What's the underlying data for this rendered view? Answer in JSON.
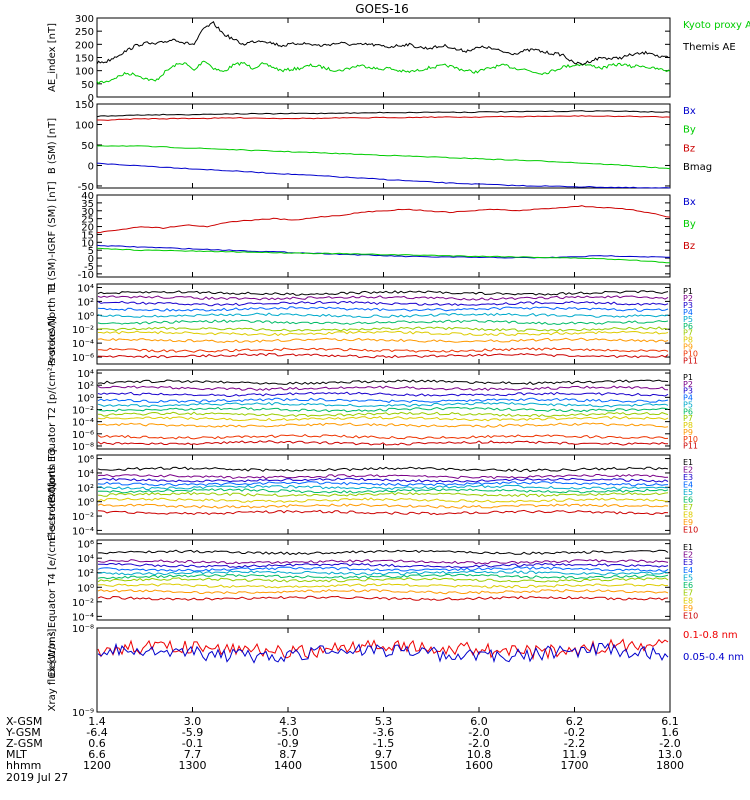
{
  "title": "GOES-16",
  "date_label": "2019 Jul 27",
  "x_range": [
    "12:00",
    "18:00"
  ],
  "chart_data": [
    {
      "type": "line",
      "ylabel": "AE_index [nT]",
      "yticks": [
        "300",
        "250",
        "200",
        "150",
        "100",
        "50",
        "0"
      ],
      "ylim": [
        0,
        300
      ],
      "series": [
        {
          "name": "Kyoto proxy AE",
          "color": "#00cc00",
          "values": [
            55,
            58,
            75,
            90,
            85,
            70,
            60,
            95,
            120,
            130,
            100,
            140,
            110,
            95,
            120,
            130,
            110,
            125,
            115,
            100,
            105,
            110,
            120,
            115,
            105,
            100,
            110,
            120,
            115,
            105,
            110,
            100,
            95,
            100,
            110,
            115,
            120,
            110,
            100,
            95,
            105,
            115,
            120,
            110,
            105,
            95,
            90,
            100,
            115,
            120,
            125,
            118,
            110,
            120,
            125,
            115,
            120,
            110,
            105,
            98
          ]
        },
        {
          "name": "Themis AE",
          "color": "#000000",
          "values": [
            130,
            135,
            155,
            175,
            195,
            205,
            200,
            210,
            220,
            205,
            200,
            260,
            280,
            240,
            220,
            200,
            210,
            215,
            205,
            195,
            200,
            205,
            200,
            195,
            200,
            205,
            200,
            198,
            200,
            195,
            190,
            195,
            200,
            190,
            185,
            190,
            195,
            180,
            175,
            185,
            190,
            180,
            170,
            165,
            175,
            180,
            170,
            165,
            160,
            130,
            125,
            140,
            150,
            145,
            150,
            160,
            165,
            170,
            150,
            150
          ]
        }
      ]
    },
    {
      "type": "line",
      "ylabel": "B (SM) [nT]",
      "yticks": [
        "150",
        "100",
        "50",
        "0",
        "-50"
      ],
      "ylim": [
        -55,
        150
      ],
      "series": [
        {
          "name": "Bx",
          "color": "#0000cc",
          "values": [
            5,
            2,
            -1,
            -4,
            -7,
            -10,
            -13,
            -16,
            -19,
            -22,
            -25,
            -28,
            -31,
            -34,
            -37,
            -40,
            -43,
            -45,
            -47,
            -49,
            -50,
            -51,
            -52,
            -53,
            -54,
            -55,
            -55
          ]
        },
        {
          "name": "By",
          "color": "#00cc00",
          "values": [
            48,
            48,
            47,
            45,
            43,
            41,
            39,
            37,
            35,
            33,
            31,
            29,
            27,
            25,
            23,
            21,
            19,
            17,
            15,
            13,
            11,
            9,
            6,
            3,
            0,
            -4,
            -8
          ]
        },
        {
          "name": "Bz",
          "color": "#cc0000",
          "values": [
            110,
            112,
            114,
            114,
            115,
            115,
            116,
            116,
            115,
            115,
            115,
            116,
            116,
            117,
            117,
            118,
            118,
            118,
            119,
            119,
            120,
            120,
            121,
            120,
            120,
            119,
            118
          ]
        },
        {
          "name": "Bmag",
          "color": "#000000",
          "values": [
            120,
            122,
            123,
            124,
            124,
            125,
            126,
            126,
            126,
            127,
            127,
            128,
            128,
            129,
            129,
            130,
            130,
            130,
            131,
            131,
            132,
            132,
            133,
            133,
            132,
            131,
            130
          ]
        }
      ]
    },
    {
      "type": "line",
      "ylabel": "B (SM)-IGRF (SM) [nT]",
      "yticks": [
        "40",
        "35",
        "30",
        "25",
        "20",
        "15",
        "10",
        "5",
        "0",
        "-5",
        "-10"
      ],
      "ylim": [
        -12,
        40
      ],
      "series": [
        {
          "name": "Bx",
          "color": "#0000cc",
          "values": [
            8,
            7.5,
            7,
            6.5,
            6,
            5.5,
            5,
            4.5,
            4,
            3.5,
            3,
            2.5,
            2,
            1.5,
            1,
            0.8,
            0.6,
            0.5,
            0.3,
            0.2,
            0.2,
            0.5,
            1,
            1.5,
            1.2,
            0.8,
            0.5
          ]
        },
        {
          "name": "By",
          "color": "#00cc00",
          "values": [
            6,
            5.5,
            5,
            4.8,
            4.5,
            4.2,
            4,
            3.8,
            3.5,
            3.2,
            3,
            2.8,
            2.5,
            2.2,
            2,
            1.8,
            1.5,
            1.2,
            1,
            0.8,
            0.5,
            0.2,
            0,
            -0.5,
            -1,
            -2,
            -3
          ]
        },
        {
          "name": "Bz",
          "color": "#cc0000",
          "values": [
            16,
            18,
            20,
            19,
            21,
            20,
            23,
            24,
            25,
            24,
            26,
            27,
            29,
            30,
            31,
            30,
            29,
            30,
            31,
            30,
            31,
            32,
            33,
            32,
            31,
            29,
            26
          ]
        }
      ]
    },
    {
      "type": "line",
      "ylabel": "Protons North T1",
      "yticks": [
        "10⁴",
        "10²",
        "10⁰",
        "10⁻²",
        "10⁻⁴",
        "10⁻⁶"
      ],
      "ylim": [
        -7,
        4.5
      ],
      "log_scale": true,
      "series": [
        {
          "name": "P1",
          "color": "#000000",
          "level": 3.2
        },
        {
          "name": "P2",
          "color": "#7a0088",
          "level": 2.5
        },
        {
          "name": "P3",
          "color": "#1a00cc",
          "level": 1.7
        },
        {
          "name": "P4",
          "color": "#0066ff",
          "level": 0.9
        },
        {
          "name": "P5",
          "color": "#00aacc",
          "level": 0.0
        },
        {
          "name": "P6",
          "color": "#00bb66",
          "level": -1.0
        },
        {
          "name": "P7",
          "color": "#99cc00",
          "level": -2.0
        },
        {
          "name": "P8",
          "color": "#ddcc00",
          "level": -2.6
        },
        {
          "name": "P9",
          "color": "#ff9900",
          "level": -3.6
        },
        {
          "name": "P10",
          "color": "#ee3300",
          "level": -5.0
        },
        {
          "name": "P11",
          "color": "#cc0000",
          "level": -5.8
        }
      ]
    },
    {
      "type": "line",
      "ylabel": "Protons Equator T2 [p/(cm²-s-sr-keV)]",
      "yticks": [
        "10⁴",
        "10²",
        "10⁰",
        "10⁻²",
        "10⁻⁴",
        "10⁻⁶",
        "10⁻⁸"
      ],
      "ylim": [
        -8.5,
        4.5
      ],
      "log_scale": true,
      "series": [
        {
          "name": "P1",
          "color": "#000000",
          "level": 2.5
        },
        {
          "name": "P2",
          "color": "#7a0088",
          "level": 1.5
        },
        {
          "name": "P3",
          "color": "#1a00cc",
          "level": 0.5
        },
        {
          "name": "P4",
          "color": "#0066ff",
          "level": -0.5
        },
        {
          "name": "P5",
          "color": "#00aacc",
          "level": -1.2
        },
        {
          "name": "P6",
          "color": "#00bb66",
          "level": -2.0
        },
        {
          "name": "P7",
          "color": "#99cc00",
          "level": -2.8
        },
        {
          "name": "P8",
          "color": "#ddcc00",
          "level": -3.5
        },
        {
          "name": "P9",
          "color": "#ff9900",
          "level": -4.6
        },
        {
          "name": "P10",
          "color": "#ee3300",
          "level": -6.5
        },
        {
          "name": "P11",
          "color": "#cc0000",
          "level": -7.5
        }
      ]
    },
    {
      "type": "line",
      "ylabel": "Electrons North T3",
      "yticks": [
        "10⁶",
        "10⁴",
        "10²",
        "10⁰",
        "10⁻²",
        "10⁻⁴"
      ],
      "ylim": [
        -4.5,
        6.5
      ],
      "log_scale": true,
      "series": [
        {
          "name": "E1",
          "color": "#000000",
          "level": 4.5
        },
        {
          "name": "E2",
          "color": "#7a0088",
          "level": 3.5
        },
        {
          "name": "E3",
          "color": "#1a00cc",
          "level": 3.0
        },
        {
          "name": "E4",
          "color": "#0066ff",
          "level": 2.5
        },
        {
          "name": "E5",
          "color": "#00aacc",
          "level": 2.0
        },
        {
          "name": "E6",
          "color": "#00bb66",
          "level": 1.5
        },
        {
          "name": "E7",
          "color": "#99cc00",
          "level": 1.0
        },
        {
          "name": "E8",
          "color": "#ddcc00",
          "level": 0.2
        },
        {
          "name": "E9",
          "color": "#ff9900",
          "level": -0.6
        },
        {
          "name": "E10",
          "color": "#cc0000",
          "level": -1.5
        }
      ]
    },
    {
      "type": "line",
      "ylabel": "Electrons Equator T4 [e/(cm²-s-sr-keV)]",
      "yticks": [
        "10⁶",
        "10⁴",
        "10²",
        "10⁰",
        "10⁻²",
        "10⁻⁴"
      ],
      "ylim": [
        -4.5,
        6.5
      ],
      "log_scale": true,
      "series": [
        {
          "name": "E1",
          "color": "#000000",
          "level": 4.8
        },
        {
          "name": "E2",
          "color": "#7a0088",
          "level": 3.5
        },
        {
          "name": "E3",
          "color": "#1a00cc",
          "level": 3.0
        },
        {
          "name": "E4",
          "color": "#0066ff",
          "level": 2.5
        },
        {
          "name": "E5",
          "color": "#00aacc",
          "level": 2.0
        },
        {
          "name": "E6",
          "color": "#00bb66",
          "level": 1.5
        },
        {
          "name": "E7",
          "color": "#99cc00",
          "level": 1.0
        },
        {
          "name": "E8",
          "color": "#ddcc00",
          "level": 0.2
        },
        {
          "name": "E9",
          "color": "#ff9900",
          "level": -0.6
        },
        {
          "name": "E10",
          "color": "#cc0000",
          "level": -1.5
        }
      ]
    },
    {
      "type": "line",
      "ylabel": "Xray flux [W/m²]",
      "yticks": [
        "10⁻⁸",
        "10⁻⁹"
      ],
      "ylim": [
        -9,
        -8
      ],
      "log_scale": true,
      "series": [
        {
          "name": "0.1-0.8 nm",
          "color": "#ee0000",
          "level": -8.25
        },
        {
          "name": "0.05-0.4 nm",
          "color": "#0000cc",
          "level": -8.3
        }
      ]
    }
  ],
  "orbit_table": {
    "rows": [
      {
        "label": "X-GSM",
        "values": [
          "1.4",
          "3.0",
          "4.3",
          "5.3",
          "6.0",
          "6.2",
          "6.1"
        ]
      },
      {
        "label": "Y-GSM",
        "values": [
          "-6.4",
          "-5.9",
          "-5.0",
          "-3.6",
          "-2.0",
          "-0.2",
          "1.6"
        ]
      },
      {
        "label": "Z-GSM",
        "values": [
          "0.6",
          "-0.1",
          "-0.9",
          "-1.5",
          "-2.0",
          "-2.2",
          "-2.0"
        ]
      },
      {
        "label": "MLT",
        "values": [
          "6.6",
          "7.7",
          "8.7",
          "9.7",
          "10.8",
          "11.9",
          "13.0"
        ]
      },
      {
        "label": "hhmm",
        "values": [
          "1200",
          "1300",
          "1400",
          "1500",
          "1600",
          "1700",
          "1800"
        ]
      }
    ]
  }
}
